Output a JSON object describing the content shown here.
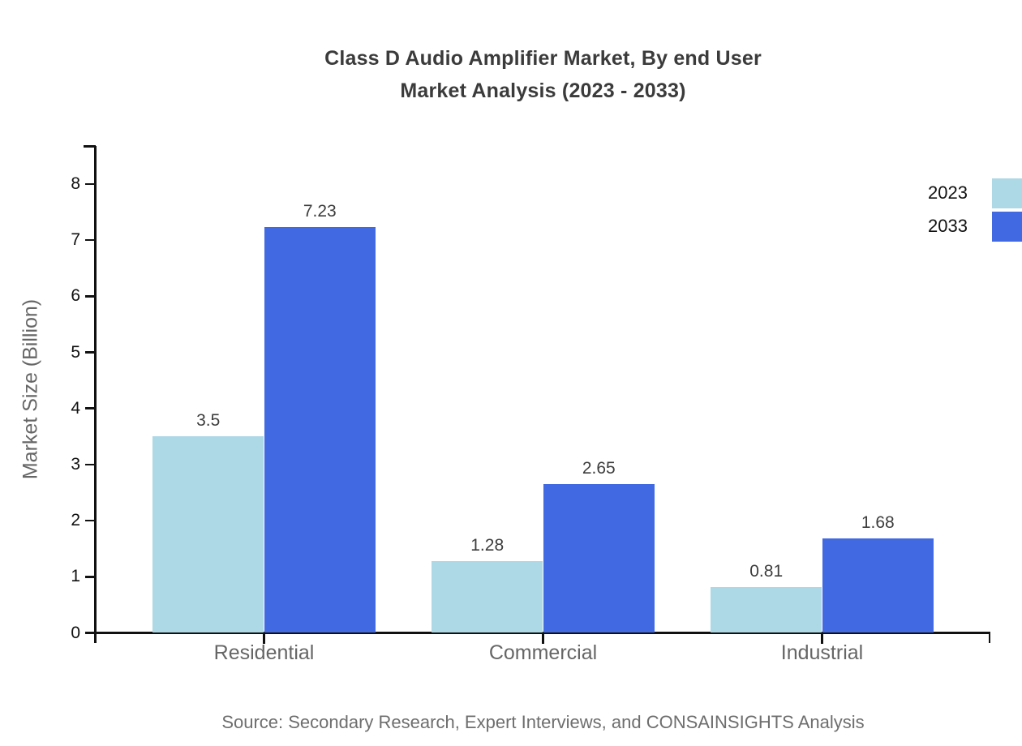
{
  "title": {
    "line1": "Class D Audio Amplifier Market, By end User",
    "line2": "Market Analysis (2023 - 2033)"
  },
  "source_note": "Source: Secondary Research, Expert Interviews, and CONSAINSIGHTS Analysis",
  "chart_data": {
    "type": "bar",
    "title": "Class D Audio Amplifier Market, By end User Market Analysis (2023 - 2033)",
    "categories": [
      "Residential",
      "Commercial",
      "Industrial"
    ],
    "series": [
      {
        "name": "2023",
        "color": "#ADD8E6",
        "values": [
          3.5,
          1.28,
          0.81
        ]
      },
      {
        "name": "2033",
        "color": "#4169E1",
        "values": [
          7.23,
          2.65,
          1.68
        ]
      }
    ],
    "xlabel": "",
    "ylabel": "Market Size (Billion)",
    "ylim": [
      0,
      8.68
    ],
    "yticks": [
      0,
      1,
      2,
      3,
      4,
      5,
      6,
      7,
      8
    ],
    "grid": false,
    "legend_position": "top-right",
    "bar_value_labels": true
  },
  "colors": {
    "series_2023": "#ADD8E6",
    "series_2033": "#4169E1",
    "axis": "#111111",
    "title_text": "#3b3b3b",
    "muted_text": "#666666",
    "background": "#ffffff"
  }
}
